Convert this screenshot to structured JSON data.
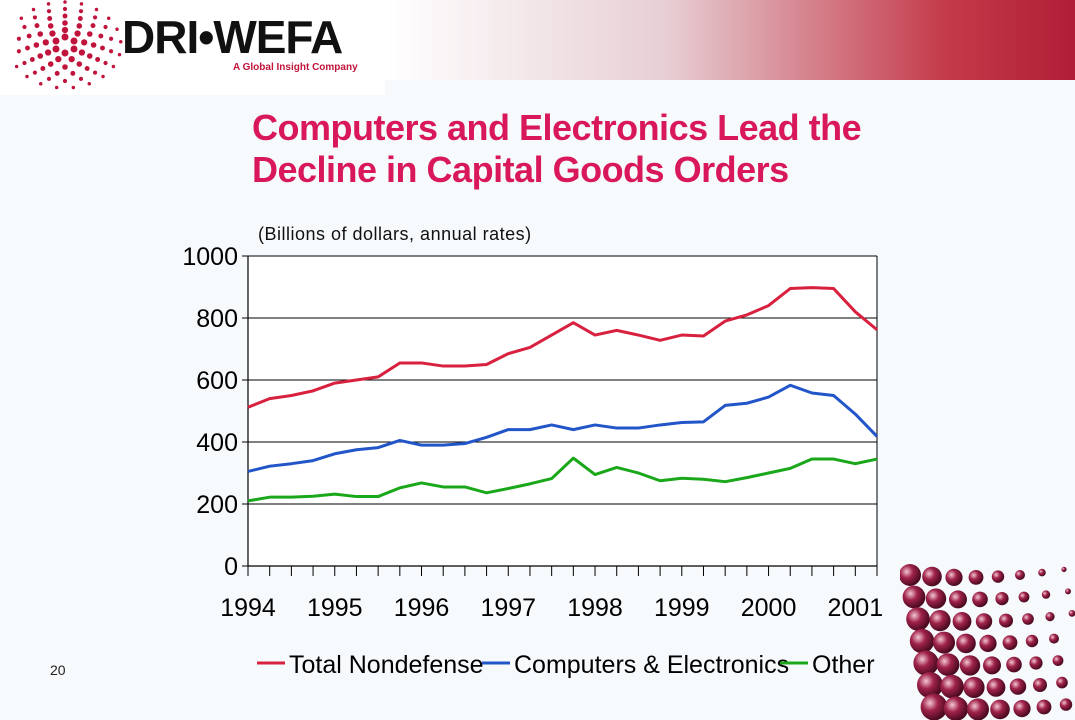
{
  "logo": {
    "name": "DRI•WEFA",
    "tagline": "A Global Insight Company"
  },
  "slide": {
    "title_line1": "Computers and Electronics Lead the",
    "title_line2": "Decline in Capital Goods Orders",
    "subtitle": "(Billions of dollars, annual rates)",
    "page_number": "20"
  },
  "colors": {
    "title": "#d8185a",
    "total_nondefense": "#d8213f",
    "computers_electronics": "#2255c8",
    "other": "#1aa81a"
  },
  "chart_data": {
    "type": "line",
    "title": "",
    "xlabel": "",
    "ylabel": "",
    "ylim": [
      0,
      1000
    ],
    "yticks": [
      0,
      200,
      400,
      600,
      800,
      1000
    ],
    "xticks": [
      "1994",
      "1995",
      "1996",
      "1997",
      "1998",
      "1999",
      "2000",
      "2001"
    ],
    "xlim": [
      1994,
      2001.25
    ],
    "grid": "horizontal",
    "legend": "bottom",
    "x": [
      1994.0,
      1994.25,
      1994.5,
      1994.75,
      1995.0,
      1995.25,
      1995.5,
      1995.75,
      1996.0,
      1996.25,
      1996.5,
      1996.75,
      1997.0,
      1997.25,
      1997.5,
      1997.75,
      1998.0,
      1998.25,
      1998.5,
      1998.75,
      1999.0,
      1999.25,
      1999.5,
      1999.75,
      2000.0,
      2000.25,
      2000.5,
      2000.75,
      2001.0,
      2001.25
    ],
    "series": [
      {
        "name": "Total Nondefense",
        "color": "#d8213f",
        "values": [
          512,
          540,
          550,
          565,
          590,
          600,
          610,
          655,
          655,
          645,
          645,
          650,
          685,
          705,
          745,
          785,
          745,
          760,
          745,
          728,
          745,
          742,
          790,
          810,
          840,
          895,
          898,
          895,
          820,
          762
        ]
      },
      {
        "name": "Computers & Electronics",
        "color": "#2255c8",
        "values": [
          305,
          322,
          330,
          340,
          362,
          375,
          382,
          405,
          390,
          390,
          395,
          415,
          440,
          440,
          455,
          440,
          455,
          445,
          445,
          455,
          463,
          465,
          518,
          525,
          545,
          583,
          558,
          550,
          490,
          418
        ]
      },
      {
        "name": "Other",
        "color": "#1aa81a",
        "values": [
          210,
          222,
          222,
          225,
          232,
          224,
          224,
          252,
          268,
          255,
          255,
          236,
          250,
          265,
          282,
          348,
          295,
          318,
          300,
          275,
          283,
          280,
          272,
          285,
          300,
          315,
          345,
          345,
          330,
          345
        ]
      }
    ]
  }
}
